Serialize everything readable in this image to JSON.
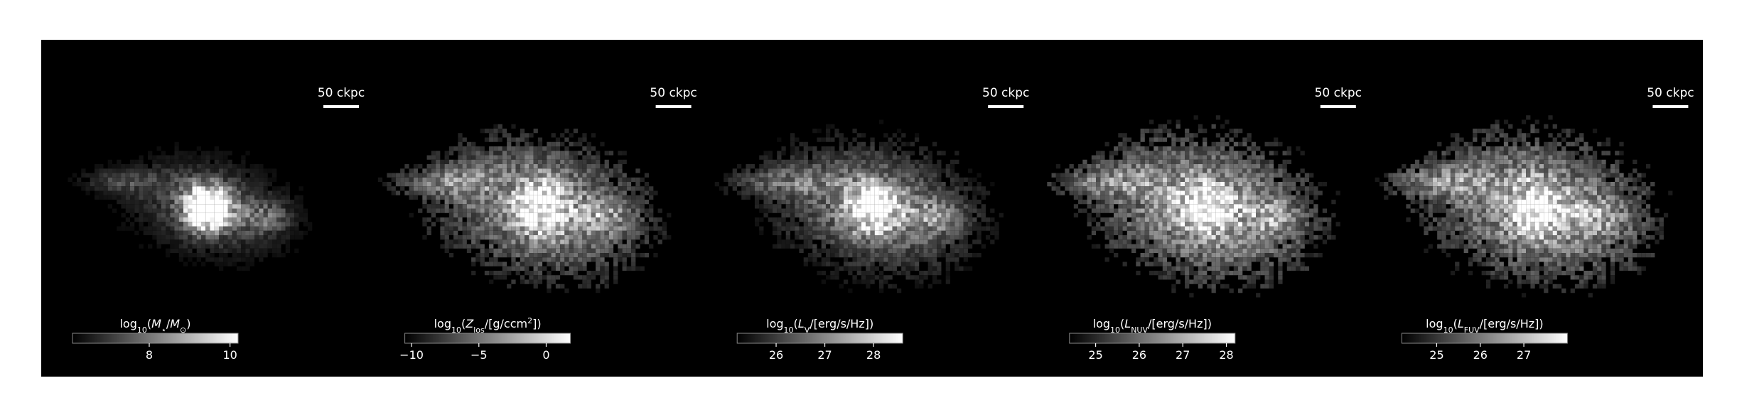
{
  "chart_data": [
    {
      "type": "image",
      "scale_bar": "50 ckpc",
      "colorbar": {
        "label": [
          {
            "text": "log"
          },
          {
            "text": "10",
            "sub": true
          },
          {
            "text": "("
          },
          {
            "text": "M",
            "italic": true
          },
          {
            "text": "⋆",
            "sub": true
          },
          {
            "text": "/"
          },
          {
            "text": "M",
            "italic": true
          },
          {
            "text": "⊙",
            "sub": true
          },
          {
            "text": ")"
          }
        ],
        "clim": [
          6.1,
          10.2
        ],
        "ticks": [
          8,
          10
        ]
      }
    },
    {
      "type": "image",
      "scale_bar": "50 ckpc",
      "colorbar": {
        "label": [
          {
            "text": "log"
          },
          {
            "text": "10",
            "sub": true
          },
          {
            "text": "("
          },
          {
            "text": "Z",
            "italic": true
          },
          {
            "text": "los",
            "sub": true
          },
          {
            "text": "/[g/ccm"
          },
          {
            "text": "2",
            "sup": true
          },
          {
            "text": "])"
          }
        ],
        "clim": [
          -10.5,
          1.8
        ],
        "ticks": [
          {
            "value": -10,
            "label": "−10"
          },
          {
            "value": -5,
            "label": "−5"
          },
          0
        ]
      }
    },
    {
      "type": "image",
      "scale_bar": "50 ckpc",
      "colorbar": {
        "label": [
          {
            "text": "log"
          },
          {
            "text": "10",
            "sub": true
          },
          {
            "text": "("
          },
          {
            "text": "L",
            "italic": true
          },
          {
            "text": "V",
            "sub": true
          },
          {
            "text": "/[erg/s/Hz])"
          }
        ],
        "clim": [
          25.2,
          28.6
        ],
        "ticks": [
          26,
          27,
          28
        ]
      }
    },
    {
      "type": "image",
      "scale_bar": "50 ckpc",
      "colorbar": {
        "label": [
          {
            "text": "log"
          },
          {
            "text": "10",
            "sub": true
          },
          {
            "text": "("
          },
          {
            "text": "L",
            "italic": true
          },
          {
            "text": "NUV",
            "sub": true
          },
          {
            "text": "/[erg/s/Hz])"
          }
        ],
        "clim": [
          24.4,
          28.2
        ],
        "ticks": [
          25,
          26,
          27,
          28
        ]
      }
    },
    {
      "type": "image",
      "scale_bar": "50 ckpc",
      "colorbar": {
        "label": [
          {
            "text": "log"
          },
          {
            "text": "10",
            "sub": true
          },
          {
            "text": "("
          },
          {
            "text": "L",
            "italic": true
          },
          {
            "text": "FUV",
            "sub": true
          },
          {
            "text": "/[erg/s/Hz])"
          }
        ],
        "clim": [
          24.2,
          28.0
        ],
        "ticks": [
          25,
          26,
          27
        ]
      }
    }
  ]
}
